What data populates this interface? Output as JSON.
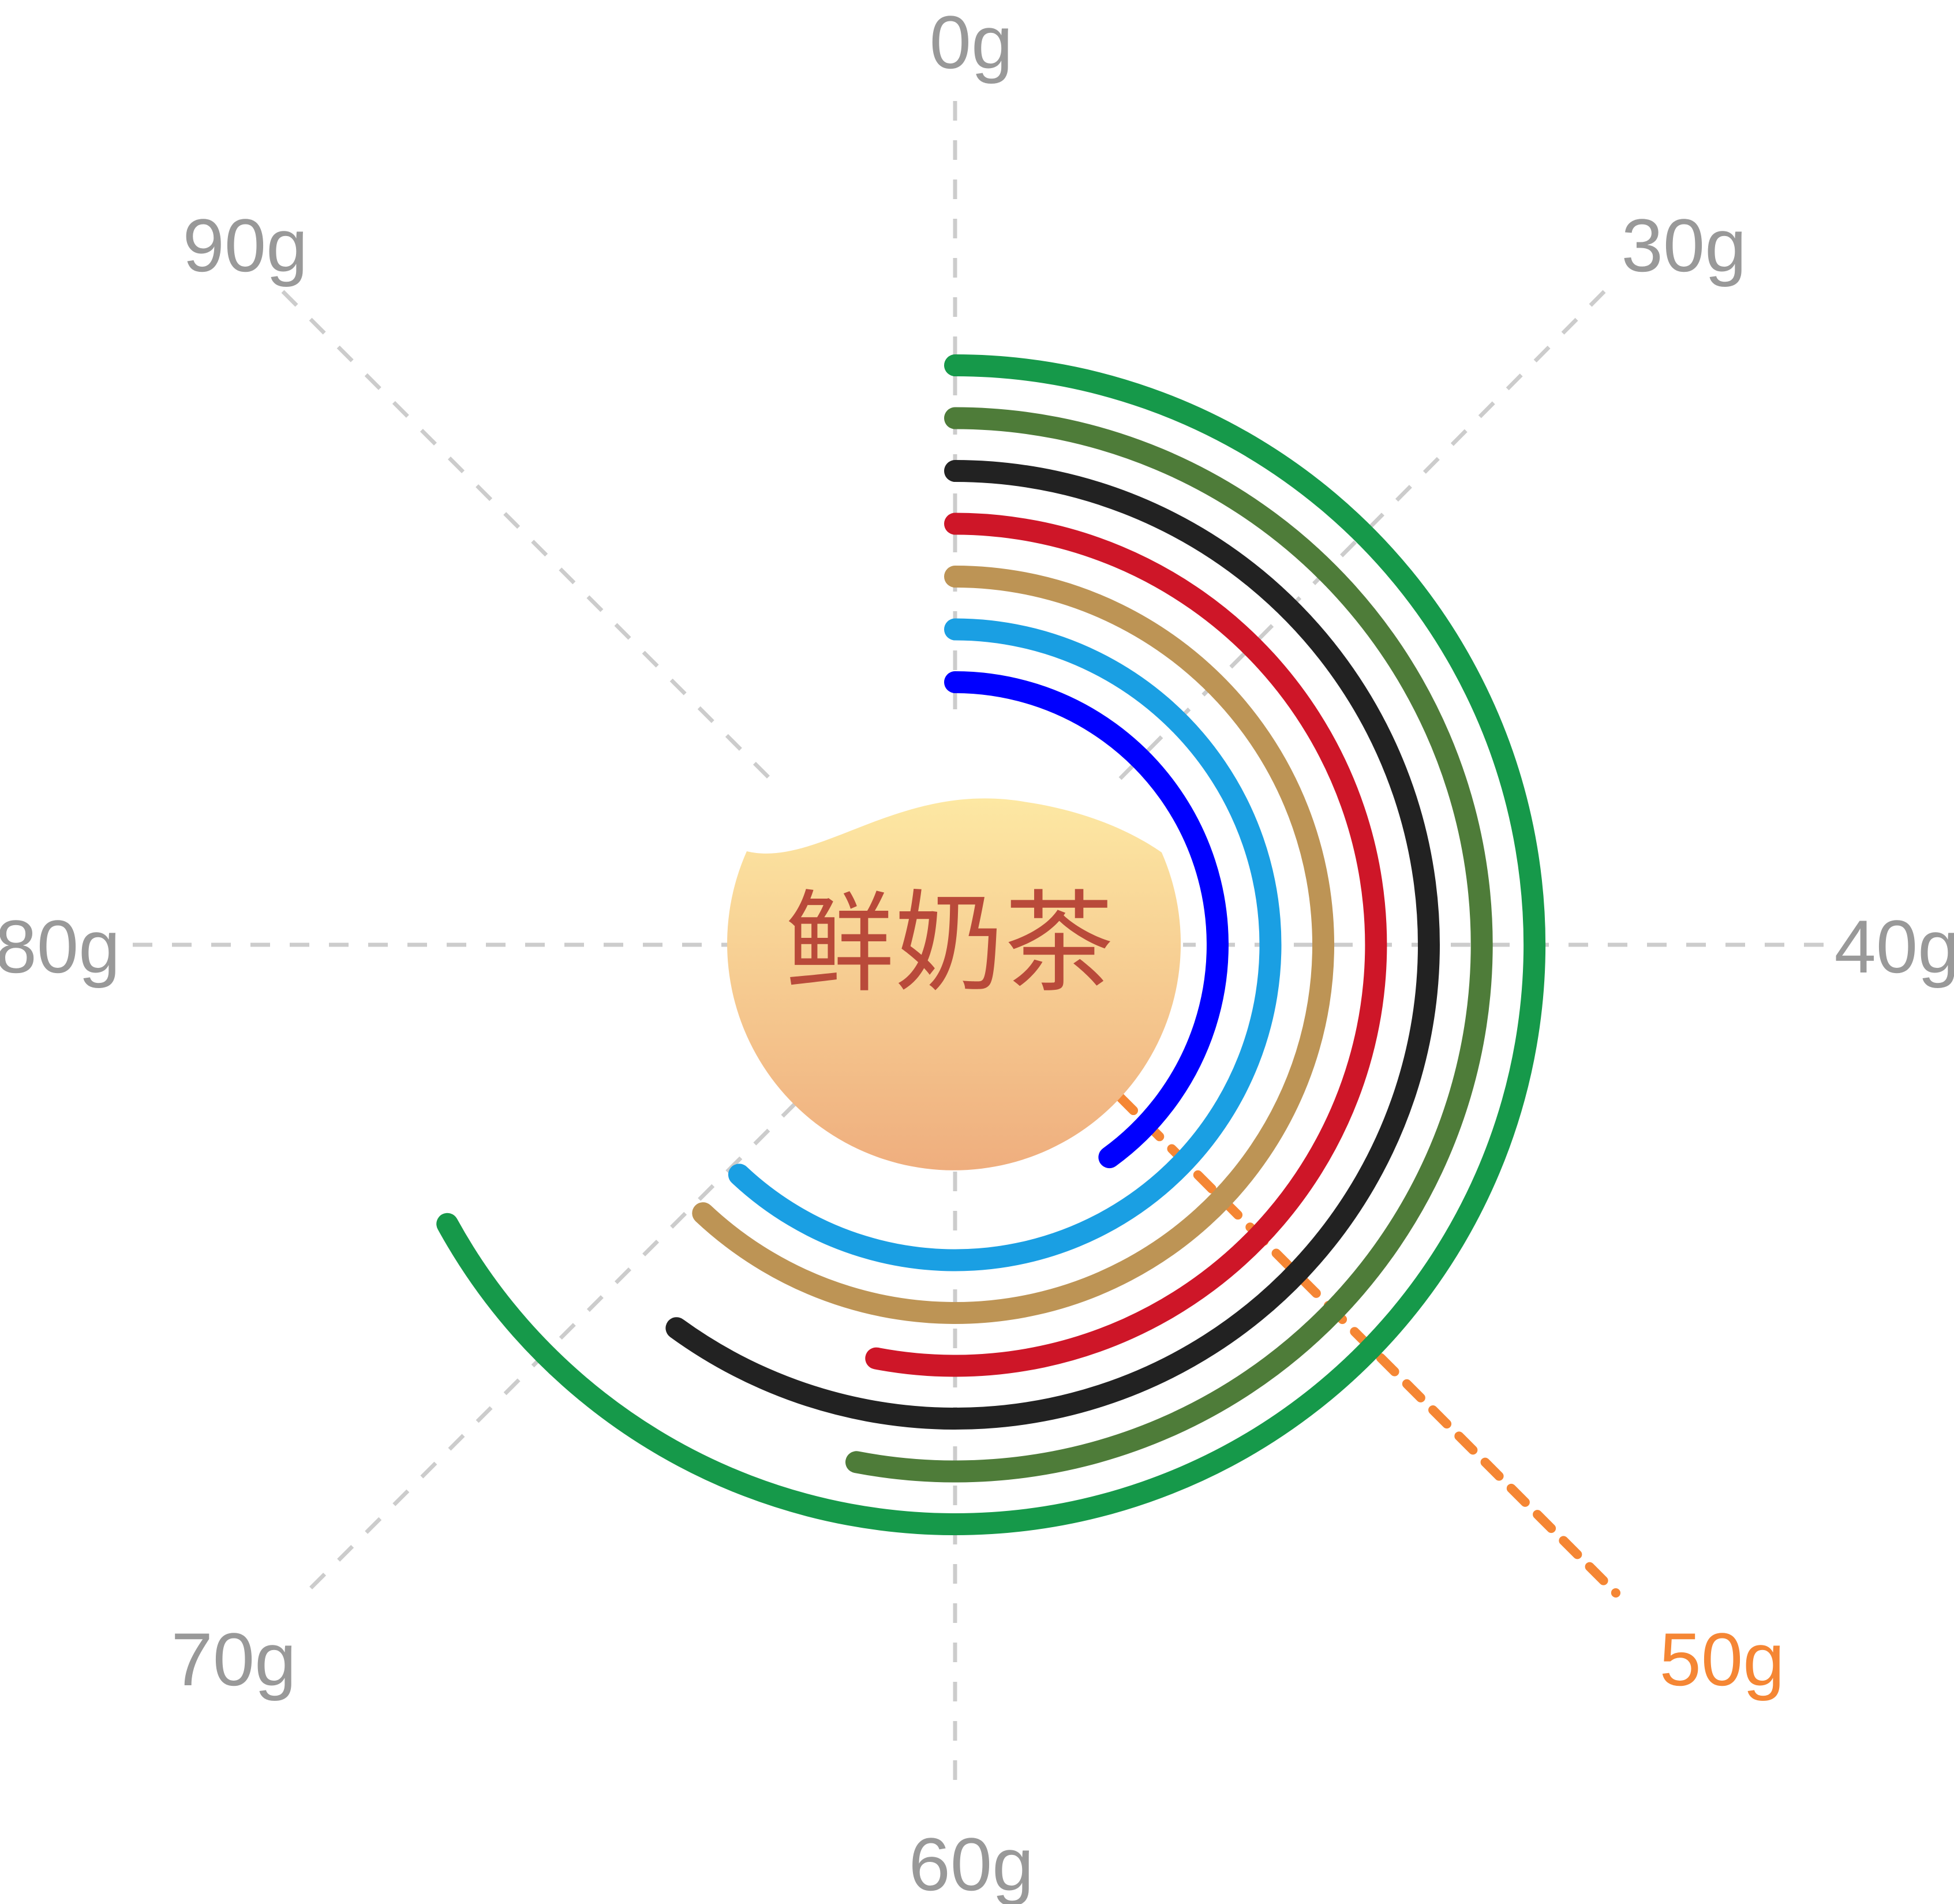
{
  "chart_data": {
    "type": "radial-bar",
    "center_label": "鲜奶茶",
    "axis_labels": [
      "0g",
      "30g",
      "40g",
      "50g",
      "60g",
      "70g",
      "80g",
      "90g"
    ],
    "highlight_label": "50g",
    "series": [
      {
        "value": 40,
        "color": "#0000FF"
      },
      {
        "value": 62,
        "color": "#1A9FE3"
      },
      {
        "value": 62,
        "color": "#BD9455"
      },
      {
        "value": 53,
        "color": "#CE1628"
      },
      {
        "value": 60,
        "color": "#222222"
      },
      {
        "value": 53,
        "color": "#4E7C39"
      },
      {
        "value": 67,
        "color": "#16994A"
      }
    ],
    "colors": {
      "axis": "#CCCCCC",
      "label": "#999999",
      "highlight": "#F58634",
      "center_text": "#B94A3A",
      "center_gradient_top": "#FDE8A3",
      "center_gradient_bottom": "#EFAE7E"
    }
  }
}
